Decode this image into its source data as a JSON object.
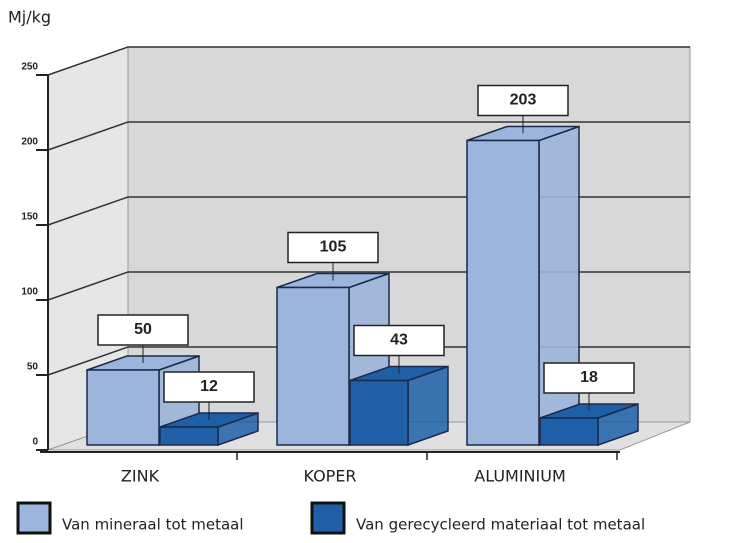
{
  "chart_data": {
    "type": "bar3d",
    "y_label": "Mj/kg",
    "categories": [
      "ZINK",
      "KOPER",
      "ALUMINIUM"
    ],
    "series": [
      {
        "name": "Van mineraal tot metaal",
        "color": "#9bb5dc",
        "values": [
          50,
          105,
          203
        ]
      },
      {
        "name": "Van gerecycleerd materiaal tot metaal",
        "color": "#1f5fa8",
        "values": [
          12,
          43,
          18
        ]
      }
    ],
    "ylim": [
      0,
      250
    ],
    "yticks": [
      0,
      50,
      100,
      150,
      200,
      250
    ],
    "grid": true
  }
}
